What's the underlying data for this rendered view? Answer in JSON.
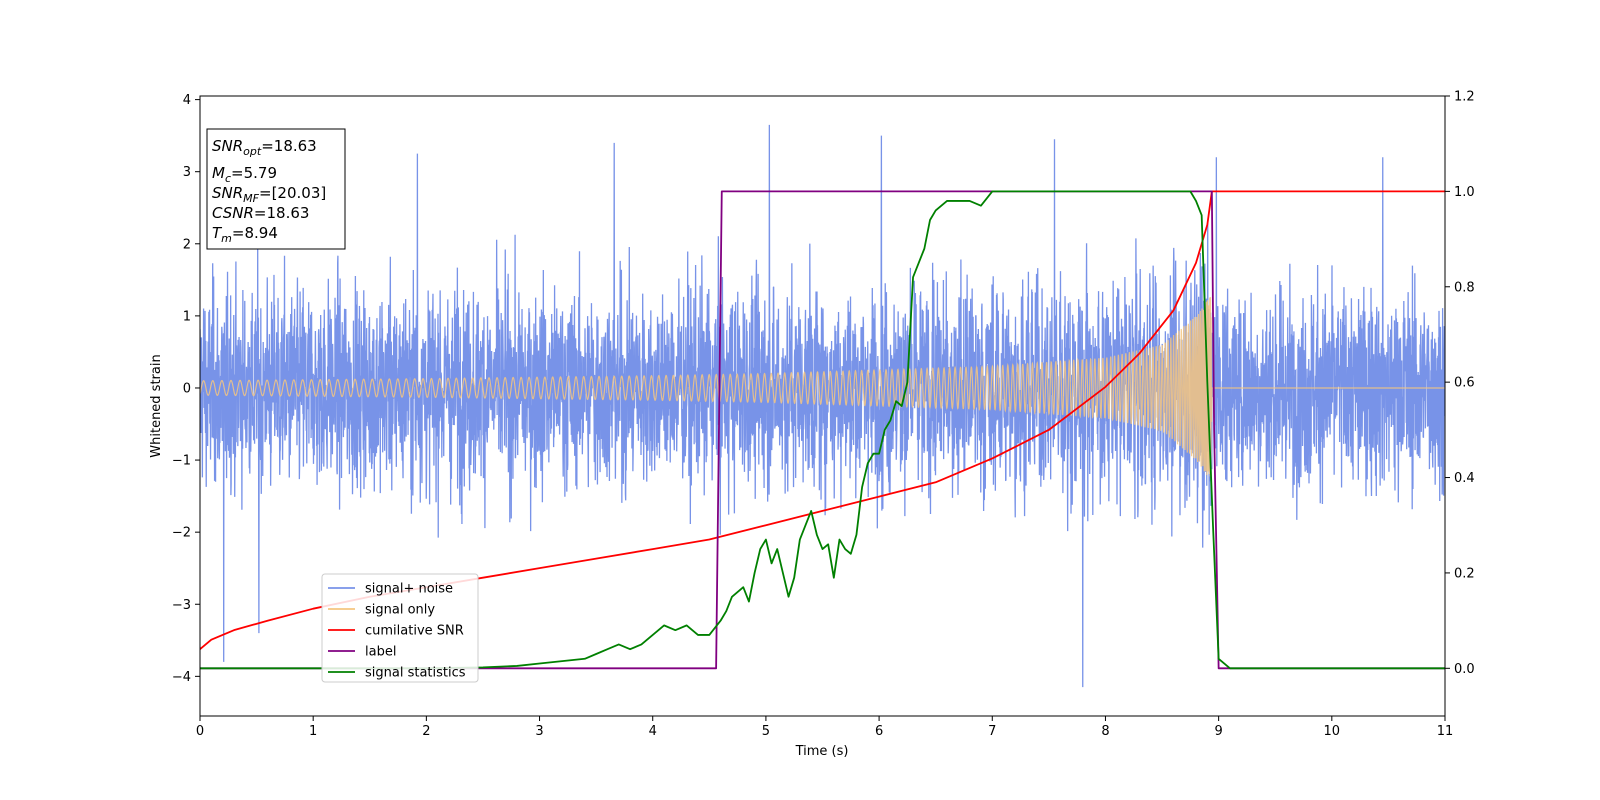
{
  "chart_data": {
    "type": "line",
    "xlabel": "Time (s)",
    "ylabel": "Whitened strain",
    "xlim": [
      0,
      11
    ],
    "ylim_left": [
      -4.55,
      4.05
    ],
    "ylim_right": [
      -0.1,
      1.2
    ],
    "xticks": [
      "0",
      "1",
      "2",
      "3",
      "4",
      "5",
      "6",
      "7",
      "8",
      "9",
      "10",
      "11"
    ],
    "yticks_left": [
      "−4",
      "−3",
      "−2",
      "−1",
      "0",
      "1",
      "2",
      "3",
      "4"
    ],
    "yticks_right": [
      "0.0",
      "0.2",
      "0.4",
      "0.6",
      "0.8",
      "1.0",
      "1.2"
    ],
    "legend_position": "lower-left",
    "grid": false,
    "annotation": {
      "snr_opt": {
        "base": "SNR",
        "sub": "opt",
        "value": "=18.63"
      },
      "mc": {
        "base": "M",
        "sub": "c",
        "value": "=5.79"
      },
      "snr_mf": {
        "base": "SNR",
        "sub": "MF",
        "value": "=[20.03]"
      },
      "csnr": {
        "base": "CSNR",
        "value": "=18.63"
      },
      "tm": {
        "base": "T",
        "sub": "m",
        "value": "=8.94"
      }
    },
    "series": [
      {
        "name": "signal+ noise",
        "axis": "left",
        "color": "#7893e8",
        "description_values": {
          "noise_std": 0.9,
          "max": 3.65,
          "min": -4.15
        }
      },
      {
        "name": "signal only",
        "axis": "left",
        "color": "#f5c680",
        "envelope": {
          "t": [
            0,
            2,
            4,
            5,
            6,
            7,
            8,
            8.5,
            8.8,
            8.94
          ],
          "amp": [
            0.1,
            0.13,
            0.17,
            0.2,
            0.25,
            0.3,
            0.42,
            0.6,
            1.0,
            1.3
          ]
        }
      },
      {
        "name": "cumilative SNR",
        "axis": "right",
        "color": "#ff0000",
        "x": [
          0,
          0.1,
          0.3,
          0.6,
          1,
          1.5,
          2,
          2.5,
          3,
          3.5,
          4,
          4.5,
          5,
          5.5,
          6,
          6.5,
          7,
          7.5,
          8,
          8.3,
          8.6,
          8.8,
          8.9,
          8.94,
          9,
          11
        ],
        "y": [
          0.04,
          0.06,
          0.08,
          0.1,
          0.125,
          0.15,
          0.17,
          0.19,
          0.21,
          0.23,
          0.25,
          0.27,
          0.3,
          0.33,
          0.36,
          0.39,
          0.44,
          0.5,
          0.59,
          0.66,
          0.75,
          0.85,
          0.93,
          1.0,
          1.0,
          1.0
        ]
      },
      {
        "name": "label",
        "axis": "right",
        "color": "#800080",
        "x": [
          0,
          4.56,
          4.61,
          8.94,
          8.96,
          9.0,
          11
        ],
        "y": [
          0,
          0,
          1,
          1,
          0.5,
          0,
          0
        ]
      },
      {
        "name": "signal statistics",
        "axis": "right",
        "color": "#008000",
        "x": [
          0,
          1,
          2,
          2.5,
          2.8,
          3.0,
          3.2,
          3.4,
          3.5,
          3.6,
          3.7,
          3.8,
          3.9,
          4.0,
          4.1,
          4.2,
          4.3,
          4.4,
          4.5,
          4.6,
          4.65,
          4.7,
          4.8,
          4.85,
          4.9,
          4.95,
          5.0,
          5.05,
          5.1,
          5.15,
          5.2,
          5.25,
          5.3,
          5.35,
          5.4,
          5.45,
          5.5,
          5.55,
          5.6,
          5.65,
          5.7,
          5.75,
          5.8,
          5.85,
          5.9,
          5.95,
          6.0,
          6.05,
          6.1,
          6.15,
          6.2,
          6.25,
          6.3,
          6.35,
          6.4,
          6.45,
          6.5,
          6.55,
          6.6,
          6.7,
          6.8,
          6.9,
          7.0,
          7.1,
          7.5,
          8.0,
          8.5,
          8.75,
          8.8,
          8.85,
          8.9,
          8.95,
          9.0,
          9.05,
          9.1,
          11
        ],
        "y": [
          0,
          0,
          0,
          0.002,
          0.005,
          0.01,
          0.015,
          0.02,
          0.03,
          0.04,
          0.05,
          0.04,
          0.05,
          0.07,
          0.09,
          0.08,
          0.09,
          0.07,
          0.07,
          0.1,
          0.12,
          0.15,
          0.17,
          0.14,
          0.2,
          0.25,
          0.27,
          0.22,
          0.25,
          0.2,
          0.15,
          0.19,
          0.27,
          0.3,
          0.33,
          0.28,
          0.25,
          0.26,
          0.19,
          0.27,
          0.25,
          0.24,
          0.28,
          0.38,
          0.43,
          0.45,
          0.45,
          0.5,
          0.52,
          0.56,
          0.55,
          0.6,
          0.82,
          0.85,
          0.88,
          0.94,
          0.96,
          0.97,
          0.98,
          0.98,
          0.98,
          0.97,
          1.0,
          1.0,
          1.0,
          1.0,
          1.0,
          1.0,
          0.98,
          0.95,
          0.6,
          0.3,
          0.02,
          0.01,
          0,
          0
        ]
      }
    ]
  }
}
